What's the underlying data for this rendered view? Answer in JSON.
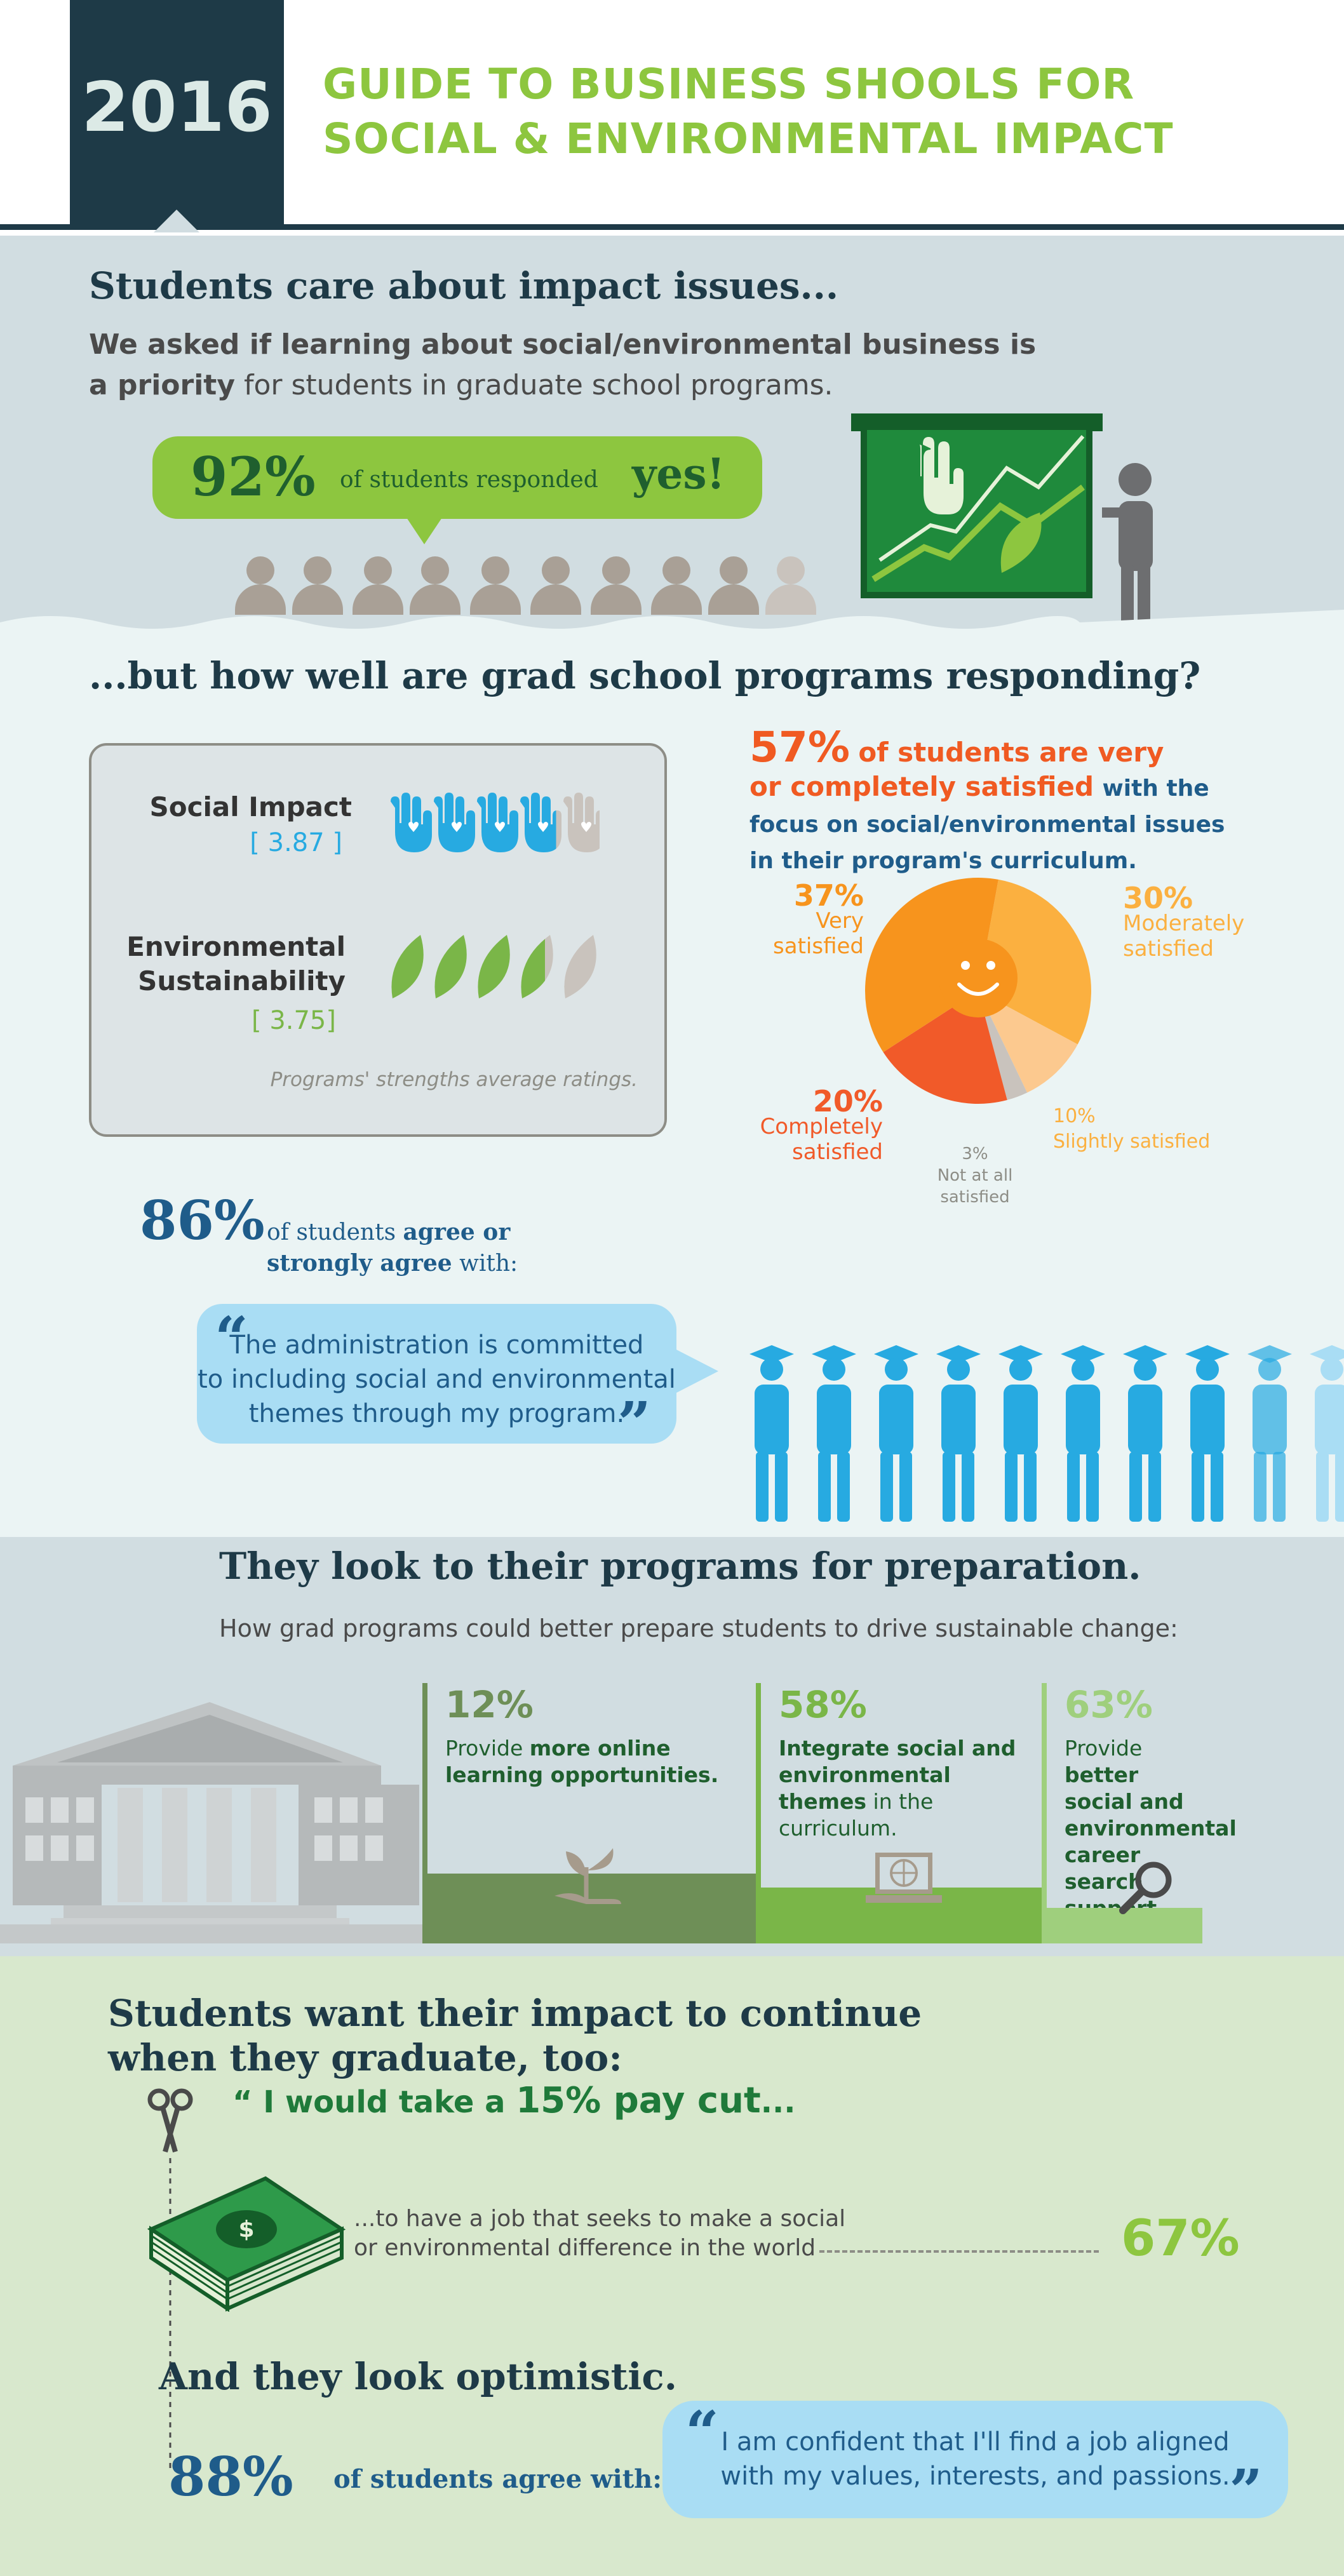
{
  "header": {
    "year": "2016",
    "title_line1": "GUIDE TO BUSINESS SHOOLS FOR",
    "title_line2": "SOCIAL & ENVIRONMENTAL IMPACT"
  },
  "section1": {
    "heading": "Students care about impact issues...",
    "sub_part1": "We asked if learning about social/environmental business is",
    "sub_bold": "a priority",
    "sub_part2": " for students in graduate school programs.",
    "stat_value": "92%",
    "stat_text": "of students responded",
    "stat_answer": "yes!"
  },
  "section2": {
    "heading": "...but how well are grad school programs responding?",
    "ratings": {
      "social_label": "Social Impact",
      "social_value": "[ 3.87 ]",
      "social_score": 3.87,
      "env_label_line1": "Environmental",
      "env_label_line2": "Sustainability",
      "env_value": "[ 3.75]",
      "env_score": 3.75,
      "max_score": 5,
      "note": "Programs' strengths average ratings."
    },
    "satisfaction": {
      "headline_value": "57%",
      "headline_line1": "of students are very",
      "headline_line2": "or completely satisfied",
      "headline_line2_rest": "with the",
      "headline_line3": "focus on social/environmental issues",
      "headline_line4": "in their program's curriculum.",
      "slices": [
        {
          "label_value": "37%",
          "label_line1": "Very",
          "label_line2": "satisfied",
          "value": 37,
          "color": "#f7941d"
        },
        {
          "label_value": "30%",
          "label_line1": "Moderately",
          "label_line2": "satisfied",
          "value": 30,
          "color": "#fbb040"
        },
        {
          "label_value": "10%",
          "label_line1": "Slightly satisfied",
          "label_line2": "",
          "value": 10,
          "color": "#fcc98f"
        },
        {
          "label_value": "3%",
          "label_line1": "Not at all",
          "label_line2": "satisfied",
          "value": 3,
          "color": "#c9c3bd"
        },
        {
          "label_value": "20%",
          "label_line1": "Completely",
          "label_line2": "satisfied",
          "value": 20,
          "color": "#f15a29"
        }
      ]
    },
    "agree_value": "86%",
    "agree_text_line1": "of students",
    "agree_text_bold1": "agree or",
    "agree_text_bold2": "strongly agree",
    "agree_text_end": "with:",
    "quote_line1": "The administration is committed",
    "quote_line2": "to including social and environmental",
    "quote_line3": "themes through my program.",
    "graduates_shown": 8.6
  },
  "section3": {
    "heading": "They look to their programs for preparation.",
    "sub": "How grad programs could better prepare students to drive sustainable change:",
    "columns": [
      {
        "value": "12%",
        "pre": "Provide ",
        "bold": "more online learning opportunities.",
        "post": "",
        "icon": "plant-hand-icon",
        "color": "#6e8f57"
      },
      {
        "value": "58%",
        "pre": "",
        "bold": "Integrate social and environmental themes",
        "post": " in the curriculum.",
        "icon": "laptop-globe-icon",
        "color": "#7ab648"
      },
      {
        "value": "63%",
        "pre": "Provide ",
        "bold": "better social and environmental career search support",
        "post": ".",
        "icon": "search-icon",
        "color": "#9fcf7d"
      }
    ]
  },
  "section4": {
    "heading_line1": "Students want their impact to continue",
    "heading_line2": "when they graduate, too:",
    "pay_pre": "“ I would take a ",
    "pay_bold": "15% pay cut",
    "pay_post": "...",
    "pay_text_line1": "...to have a job that seeks to make a social",
    "pay_text_line2": "or environmental difference in the world",
    "pay_value": "67%",
    "heading2": "And they look optimistic.",
    "optimism_value": "88%",
    "optimism_text": "of students agree with:",
    "quote_line1": "I am confident that I'll find a job aligned",
    "quote_line2": "with my values, interests, and passions."
  }
}
